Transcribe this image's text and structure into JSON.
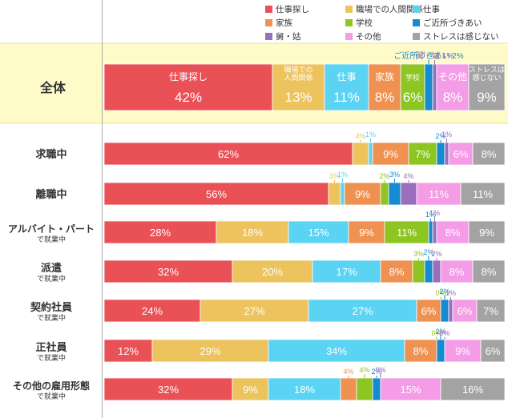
{
  "chart_data": {
    "type": "bar",
    "orientation": "horizontal",
    "stacked": true,
    "unit": "%",
    "legend_position": "top-right",
    "categories": [
      {
        "label": "全体",
        "sub": ""
      },
      {
        "label": "求職中",
        "sub": ""
      },
      {
        "label": "離職中",
        "sub": ""
      },
      {
        "label": "アルバイト・パート",
        "sub": "で就業中"
      },
      {
        "label": "派遣",
        "sub": "で就業中"
      },
      {
        "label": "契約社員",
        "sub": "で就業中"
      },
      {
        "label": "正社員",
        "sub": "で就業中"
      },
      {
        "label": "その他の雇用形態",
        "sub": "で就業中"
      }
    ],
    "series": [
      {
        "name": "仕事探し",
        "inbar_label": "仕事探し",
        "color": "#ea5157",
        "values": [
          42,
          62,
          56,
          28,
          32,
          24,
          12,
          32
        ]
      },
      {
        "name": "職場での人間関係",
        "inbar_label": "職場での 人間関係",
        "color": "#ecc35d",
        "values": [
          13,
          4,
          3,
          18,
          20,
          27,
          29,
          9
        ]
      },
      {
        "name": "仕事",
        "inbar_label": "仕事",
        "color": "#5bd3f3",
        "values": [
          11,
          1,
          1,
          15,
          17,
          27,
          34,
          18
        ]
      },
      {
        "name": "家族",
        "inbar_label": "家族",
        "color": "#ef9150",
        "values": [
          8,
          9,
          9,
          9,
          8,
          6,
          8,
          4
        ]
      },
      {
        "name": "学校",
        "inbar_label": "学校",
        "color": "#8dc522",
        "values": [
          6,
          7,
          2,
          11,
          3,
          0,
          0,
          4
        ]
      },
      {
        "name": "ご近所づきあい",
        "inbar_label": "ご近所づきあい",
        "color": "#178bcf",
        "values": [
          2,
          2,
          3,
          1,
          2,
          2,
          2,
          2
        ]
      },
      {
        "name": "舅・姑",
        "inbar_label": "舅・姑",
        "color": "#9b6dbd",
        "values": [
          1,
          1,
          4,
          1,
          2,
          1,
          0,
          0
        ]
      },
      {
        "name": "その他",
        "inbar_label": "その他",
        "color": "#f59ce6",
        "values": [
          8,
          6,
          11,
          8,
          8,
          6,
          9,
          15
        ]
      },
      {
        "name": "ストレスは感じない",
        "inbar_label": "ストレスは 感じない",
        "color": "#a3a3a3",
        "values": [
          9,
          8,
          11,
          9,
          8,
          7,
          6,
          16
        ]
      }
    ]
  }
}
